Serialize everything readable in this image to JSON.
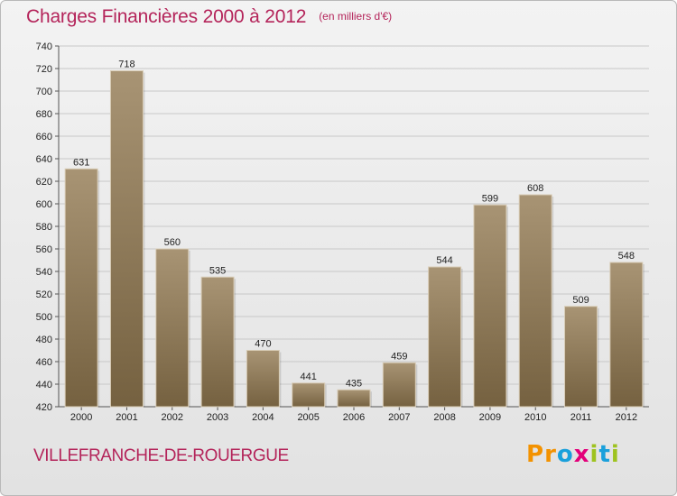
{
  "header": {
    "title": "Charges Financières 2000 à 2012",
    "subtitle": "(en milliers d'€)"
  },
  "footer": {
    "city": "VILLEFRANCHE-DE-ROUERGUE",
    "logo_text": "Proxiti",
    "logo_letters": [
      {
        "ch": "P",
        "color": "#f39200"
      },
      {
        "ch": "r",
        "color": "#f39200"
      },
      {
        "ch": "o",
        "color": "#1aa0db"
      },
      {
        "ch": "x",
        "color": "#e3007a"
      },
      {
        "ch": "i",
        "color": "#9ec31f"
      },
      {
        "ch": "t",
        "color": "#1aa0db"
      },
      {
        "ch": "i",
        "color": "#9ec31f"
      }
    ]
  },
  "chart_data": {
    "type": "bar",
    "title": "Charges Financières 2000 à 2012",
    "subtitle": "(en milliers d'€)",
    "categories": [
      "2000",
      "2001",
      "2002",
      "2003",
      "2004",
      "2005",
      "2006",
      "2007",
      "2008",
      "2009",
      "2010",
      "2011",
      "2012"
    ],
    "values": [
      631,
      718,
      560,
      535,
      470,
      441,
      435,
      459,
      544,
      599,
      608,
      509,
      548
    ],
    "ylim": [
      420,
      740
    ],
    "yticks": [
      420,
      440,
      460,
      480,
      500,
      520,
      540,
      560,
      580,
      600,
      620,
      640,
      660,
      680,
      700,
      720,
      740
    ],
    "grid": true,
    "bar_color_top": "#a89474",
    "bar_color_bottom": "#756140",
    "xlabel": "",
    "ylabel": ""
  }
}
